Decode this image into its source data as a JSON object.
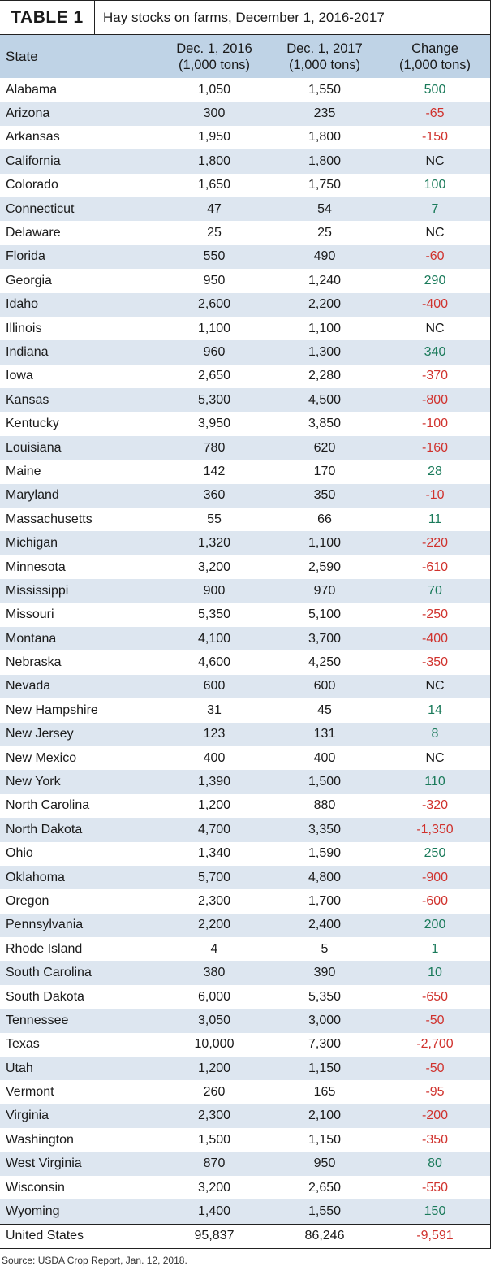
{
  "table": {
    "label": "TABLE 1",
    "title": "Hay stocks on farms, December 1, 2016-2017",
    "headers": {
      "state": "State",
      "col2016_line1": "Dec. 1, 2016",
      "col2016_line2": "(1,000 tons)",
      "col2017_line1": "Dec. 1, 2017",
      "col2017_line2": "(1,000 tons)",
      "change_line1": "Change",
      "change_line2": "(1,000 tons)"
    },
    "rows": [
      {
        "state": "Alabama",
        "v2016": "1,050",
        "v2017": "1,550",
        "change": "500",
        "dir": "pos"
      },
      {
        "state": "Arizona",
        "v2016": "300",
        "v2017": "235",
        "change": "-65",
        "dir": "neg"
      },
      {
        "state": "Arkansas",
        "v2016": "1,950",
        "v2017": "1,800",
        "change": "-150",
        "dir": "neg"
      },
      {
        "state": "California",
        "v2016": "1,800",
        "v2017": "1,800",
        "change": "NC",
        "dir": "nc"
      },
      {
        "state": "Colorado",
        "v2016": "1,650",
        "v2017": "1,750",
        "change": "100",
        "dir": "pos"
      },
      {
        "state": "Connecticut",
        "v2016": "47",
        "v2017": "54",
        "change": "7",
        "dir": "pos"
      },
      {
        "state": "Delaware",
        "v2016": "25",
        "v2017": "25",
        "change": "NC",
        "dir": "nc"
      },
      {
        "state": "Florida",
        "v2016": "550",
        "v2017": "490",
        "change": "-60",
        "dir": "neg"
      },
      {
        "state": "Georgia",
        "v2016": "950",
        "v2017": "1,240",
        "change": "290",
        "dir": "pos"
      },
      {
        "state": "Idaho",
        "v2016": "2,600",
        "v2017": "2,200",
        "change": "-400",
        "dir": "neg"
      },
      {
        "state": "Illinois",
        "v2016": "1,100",
        "v2017": "1,100",
        "change": "NC",
        "dir": "nc"
      },
      {
        "state": "Indiana",
        "v2016": "960",
        "v2017": "1,300",
        "change": "340",
        "dir": "pos"
      },
      {
        "state": "Iowa",
        "v2016": "2,650",
        "v2017": "2,280",
        "change": "-370",
        "dir": "neg"
      },
      {
        "state": "Kansas",
        "v2016": "5,300",
        "v2017": "4,500",
        "change": "-800",
        "dir": "neg"
      },
      {
        "state": "Kentucky",
        "v2016": "3,950",
        "v2017": "3,850",
        "change": "-100",
        "dir": "neg"
      },
      {
        "state": "Louisiana",
        "v2016": "780",
        "v2017": "620",
        "change": "-160",
        "dir": "neg"
      },
      {
        "state": "Maine",
        "v2016": "142",
        "v2017": "170",
        "change": "28",
        "dir": "pos"
      },
      {
        "state": "Maryland",
        "v2016": "360",
        "v2017": "350",
        "change": "-10",
        "dir": "neg"
      },
      {
        "state": "Massachusetts",
        "v2016": "55",
        "v2017": "66",
        "change": "11",
        "dir": "pos"
      },
      {
        "state": "Michigan",
        "v2016": "1,320",
        "v2017": "1,100",
        "change": "-220",
        "dir": "neg"
      },
      {
        "state": "Minnesota",
        "v2016": "3,200",
        "v2017": "2,590",
        "change": "-610",
        "dir": "neg"
      },
      {
        "state": "Mississippi",
        "v2016": "900",
        "v2017": "970",
        "change": "70",
        "dir": "pos"
      },
      {
        "state": "Missouri",
        "v2016": "5,350",
        "v2017": "5,100",
        "change": "-250",
        "dir": "neg"
      },
      {
        "state": "Montana",
        "v2016": "4,100",
        "v2017": "3,700",
        "change": "-400",
        "dir": "neg"
      },
      {
        "state": "Nebraska",
        "v2016": "4,600",
        "v2017": "4,250",
        "change": "-350",
        "dir": "neg"
      },
      {
        "state": "Nevada",
        "v2016": "600",
        "v2017": "600",
        "change": "NC",
        "dir": "nc"
      },
      {
        "state": "New Hampshire",
        "v2016": "31",
        "v2017": "45",
        "change": "14",
        "dir": "pos"
      },
      {
        "state": "New Jersey",
        "v2016": "123",
        "v2017": "131",
        "change": "8",
        "dir": "pos"
      },
      {
        "state": "New Mexico",
        "v2016": "400",
        "v2017": "400",
        "change": "NC",
        "dir": "nc"
      },
      {
        "state": "New York",
        "v2016": "1,390",
        "v2017": "1,500",
        "change": "110",
        "dir": "pos"
      },
      {
        "state": "North Carolina",
        "v2016": "1,200",
        "v2017": "880",
        "change": "-320",
        "dir": "neg"
      },
      {
        "state": "North Dakota",
        "v2016": "4,700",
        "v2017": "3,350",
        "change": "-1,350",
        "dir": "neg"
      },
      {
        "state": "Ohio",
        "v2016": "1,340",
        "v2017": "1,590",
        "change": "250",
        "dir": "pos"
      },
      {
        "state": "Oklahoma",
        "v2016": "5,700",
        "v2017": "4,800",
        "change": "-900",
        "dir": "neg"
      },
      {
        "state": "Oregon",
        "v2016": "2,300",
        "v2017": "1,700",
        "change": "-600",
        "dir": "neg"
      },
      {
        "state": "Pennsylvania",
        "v2016": "2,200",
        "v2017": "2,400",
        "change": "200",
        "dir": "pos"
      },
      {
        "state": "Rhode Island",
        "v2016": "4",
        "v2017": "5",
        "change": "1",
        "dir": "pos"
      },
      {
        "state": "South Carolina",
        "v2016": "380",
        "v2017": "390",
        "change": "10",
        "dir": "pos"
      },
      {
        "state": "South Dakota",
        "v2016": "6,000",
        "v2017": "5,350",
        "change": "-650",
        "dir": "neg"
      },
      {
        "state": "Tennessee",
        "v2016": "3,050",
        "v2017": "3,000",
        "change": "-50",
        "dir": "neg"
      },
      {
        "state": "Texas",
        "v2016": "10,000",
        "v2017": "7,300",
        "change": "-2,700",
        "dir": "neg"
      },
      {
        "state": "Utah",
        "v2016": "1,200",
        "v2017": "1,150",
        "change": "-50",
        "dir": "neg"
      },
      {
        "state": "Vermont",
        "v2016": "260",
        "v2017": "165",
        "change": "-95",
        "dir": "neg"
      },
      {
        "state": "Virginia",
        "v2016": "2,300",
        "v2017": "2,100",
        "change": "-200",
        "dir": "neg"
      },
      {
        "state": "Washington",
        "v2016": "1,500",
        "v2017": "1,150",
        "change": "-350",
        "dir": "neg"
      },
      {
        "state": "West Virginia",
        "v2016": "870",
        "v2017": "950",
        "change": "80",
        "dir": "pos"
      },
      {
        "state": "Wisconsin",
        "v2016": "3,200",
        "v2017": "2,650",
        "change": "-550",
        "dir": "neg"
      },
      {
        "state": "Wyoming",
        "v2016": "1,400",
        "v2017": "1,550",
        "change": "150",
        "dir": "pos"
      }
    ],
    "total": {
      "state": "United States",
      "v2016": "95,837",
      "v2017": "86,246",
      "change": "-9,591",
      "dir": "neg"
    }
  },
  "source": "Source: USDA Crop Report, Jan. 12, 2018.",
  "colors": {
    "header_bg": "#bfd3e6",
    "alt_row_bg": "#dde6f0",
    "positive": "#1a7a5a",
    "negative": "#d0322d"
  }
}
